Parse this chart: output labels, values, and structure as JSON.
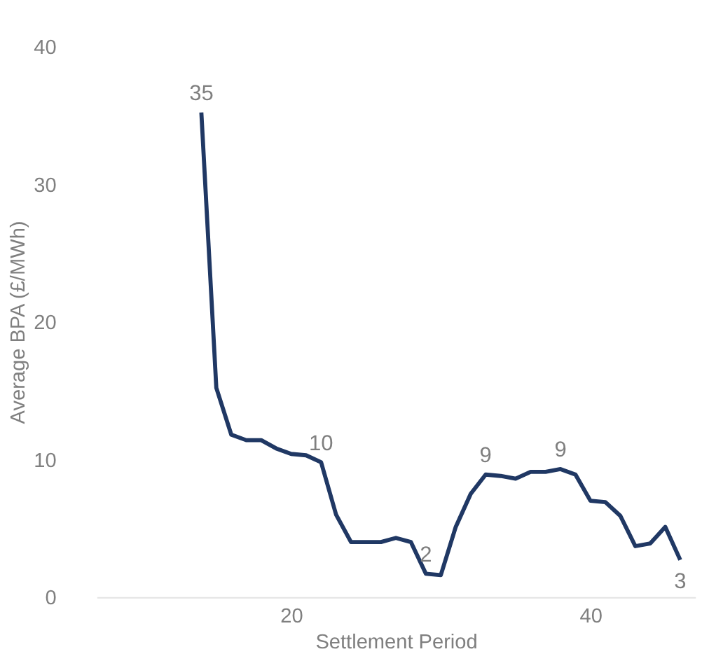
{
  "chart_data": {
    "type": "line",
    "xlabel": "Settlement Period",
    "ylabel": "Average BPA (£/MWh)",
    "x": [
      14,
      15,
      16,
      17,
      18,
      19,
      20,
      21,
      22,
      23,
      24,
      25,
      26,
      27,
      28,
      29,
      30,
      31,
      32,
      33,
      34,
      35,
      36,
      37,
      38,
      39,
      40,
      41,
      42,
      43,
      44,
      45,
      46
    ],
    "series": [
      {
        "color": "#203864",
        "values": [
          35.2,
          15.2,
          11.8,
          11.4,
          11.4,
          10.8,
          10.4,
          10.3,
          9.8,
          6.0,
          4.0,
          4.0,
          4.0,
          4.3,
          4.0,
          1.7,
          1.6,
          5.1,
          7.5,
          8.9,
          8.8,
          8.6,
          9.1,
          9.1,
          9.3,
          8.9,
          7.0,
          6.9,
          5.9,
          3.7,
          3.9,
          5.1,
          2.7
        ],
        "value_labels": [
          "35",
          null,
          null,
          null,
          null,
          null,
          null,
          null,
          "10",
          null,
          null,
          null,
          null,
          null,
          null,
          "2",
          null,
          null,
          null,
          "9",
          null,
          null,
          null,
          null,
          "9",
          null,
          null,
          null,
          null,
          null,
          null,
          null,
          "3"
        ]
      }
    ],
    "xlim": [
      7,
      47
    ],
    "xticks": [
      20,
      40
    ],
    "ylim": [
      0,
      40
    ],
    "yticks": [
      0,
      10,
      20,
      30,
      40
    ],
    "grid": false,
    "marker": "none",
    "line_style": "solid"
  }
}
